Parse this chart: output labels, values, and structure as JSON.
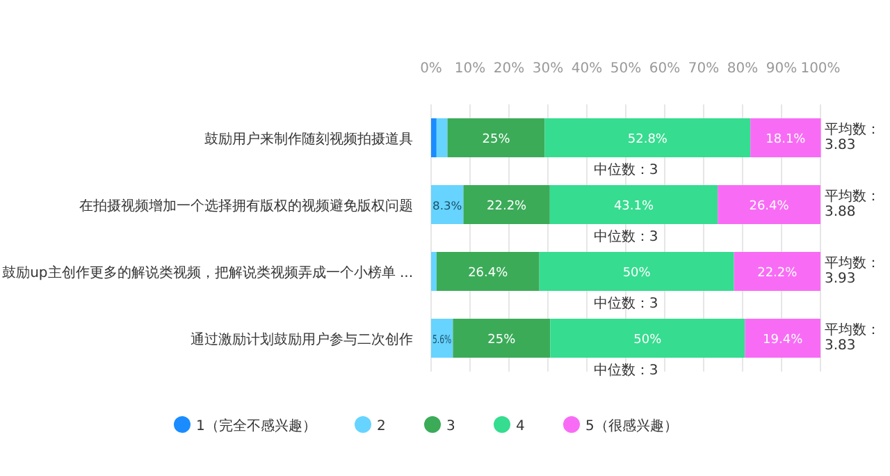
{
  "chart_data": {
    "type": "bar",
    "orientation": "horizontal",
    "stacked": true,
    "legend": "bottom",
    "grid": "x",
    "categories": [
      "鼓励用户来制作随刻视频拍摄道具",
      "在拍摄视频增加一个选择拥有版权的视频避免版权问题",
      "鼓励up主创作更多的解说类视频，把解说类视频弄成一个小榜单 ...",
      "通过激励计划鼓励用户参与二次创作"
    ],
    "xlim": [
      0,
      100
    ],
    "xticks": [
      {
        "value": 0,
        "label": "0%"
      },
      {
        "value": 10,
        "label": "10%"
      },
      {
        "value": 20,
        "label": "20%"
      },
      {
        "value": 30,
        "label": "30%"
      },
      {
        "value": 40,
        "label": "40%"
      },
      {
        "value": 50,
        "label": "50%"
      },
      {
        "value": 60,
        "label": "60%"
      },
      {
        "value": 70,
        "label": "70%"
      },
      {
        "value": 80,
        "label": "80%"
      },
      {
        "value": 90,
        "label": "90%"
      },
      {
        "value": 100,
        "label": "100%"
      }
    ],
    "series": [
      {
        "name": "1（完全不感兴趣）",
        "color": "#1a8cff",
        "values": [
          1.4,
          0,
          0,
          0
        ],
        "value_labels": [
          null,
          null,
          null,
          null
        ]
      },
      {
        "name": "2",
        "color": "#66d4ff",
        "values": [
          2.8,
          8.3,
          1.4,
          5.6
        ],
        "value_labels": [
          null,
          "8.3%",
          null,
          "5.6%"
        ]
      },
      {
        "name": "3",
        "color": "#3bab58",
        "values": [
          25,
          22.2,
          26.4,
          25
        ],
        "value_labels": [
          "25%",
          "22.2%",
          "26.4%",
          "25%"
        ]
      },
      {
        "name": "4",
        "color": "#36dc8f",
        "values": [
          52.8,
          43.1,
          50,
          50
        ],
        "value_labels": [
          "52.8%",
          "43.1%",
          "50%",
          "50%"
        ]
      },
      {
        "name": "5（很感兴趣）",
        "color": "#f86cf5",
        "values": [
          18.1,
          26.4,
          22.2,
          19.4
        ],
        "value_labels": [
          "18.1%",
          "26.4%",
          "22.2%",
          "19.4%"
        ]
      }
    ],
    "annotations": [
      "平均数：3.83",
      "中位数：3",
      "平均数：3.88",
      "中位数：3",
      "平均数：3.93",
      "中位数：3",
      "平均数：3.83",
      "中位数：3"
    ]
  }
}
